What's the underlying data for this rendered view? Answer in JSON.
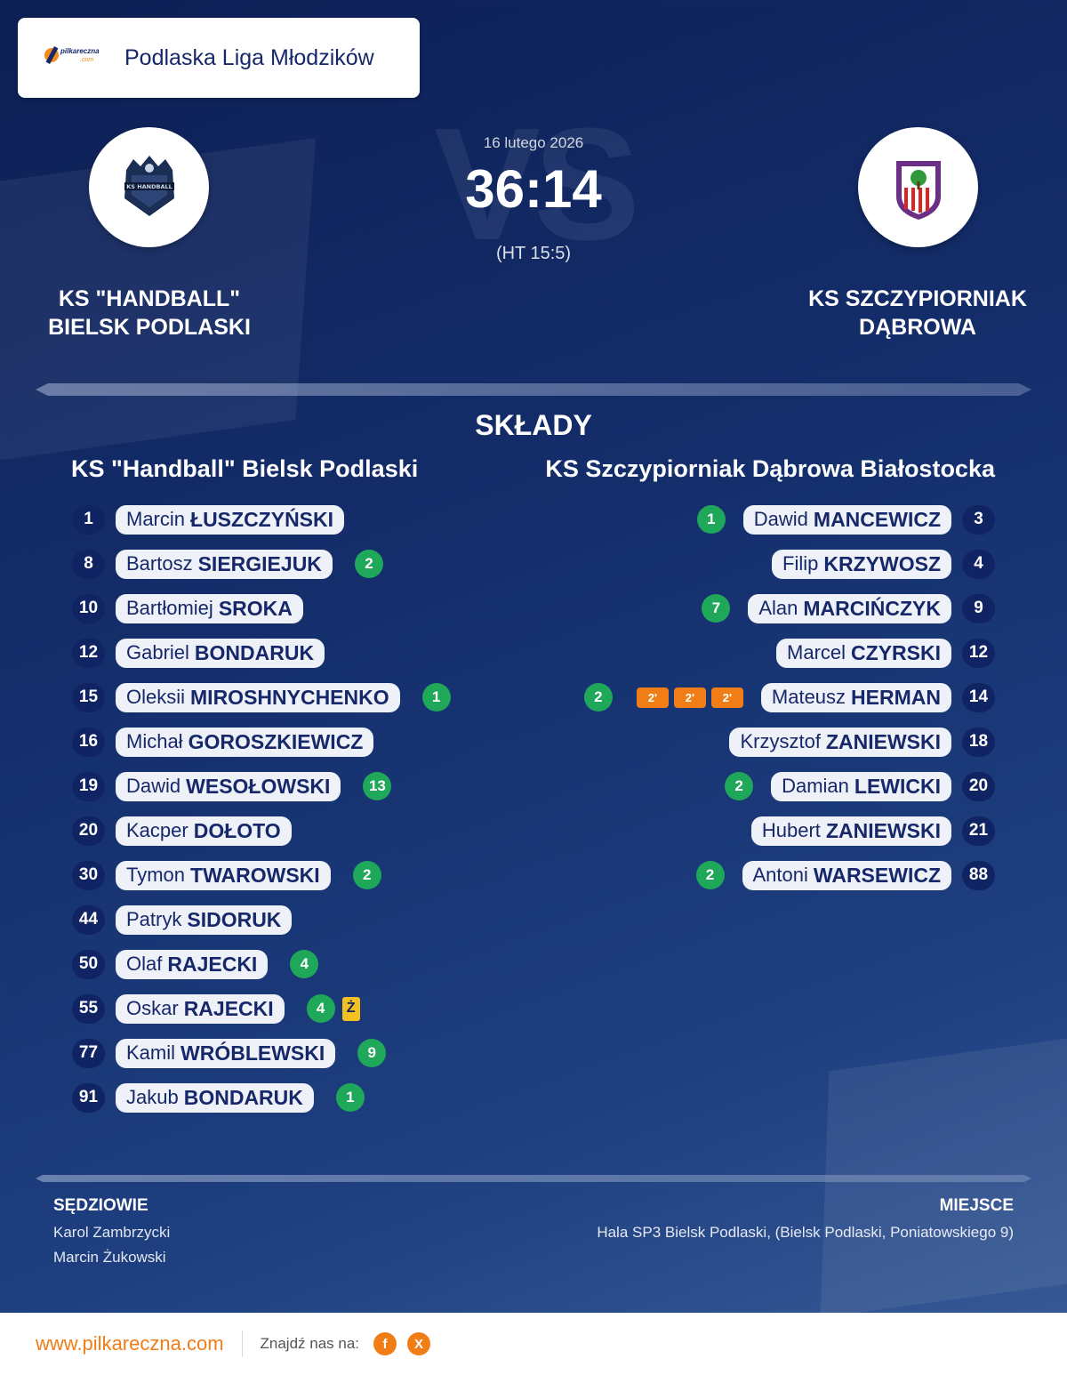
{
  "league": {
    "logo_text": "pilkareczna",
    "logo_subtext": ".com",
    "name": "Podlaska Liga Młodzików"
  },
  "match": {
    "date": "16 lutego 2026",
    "score": "36:14",
    "halftime": "(HT 15:5)",
    "vs_watermark": "VS"
  },
  "home": {
    "name_line1": "KS \"HANDBALL\"",
    "name_line2": "BIELSK PODLASKI",
    "squad_title": "KS \"Handball\" Bielsk Podlaski"
  },
  "away": {
    "name_line1": "KS SZCZYPIORNIAK",
    "name_line2": "DĄBROWA",
    "squad_title": "KS Szczypiorniak Dąbrowa Białostocka"
  },
  "section_title": "SKŁADY",
  "home_roster": [
    {
      "number": "1",
      "first": "Marcin",
      "last": "ŁUSZCZYŃSKI"
    },
    {
      "number": "8",
      "first": "Bartosz",
      "last": "SIERGIEJUK",
      "goals": "2"
    },
    {
      "number": "10",
      "first": "Bartłomiej",
      "last": "SROKA"
    },
    {
      "number": "12",
      "first": "Gabriel",
      "last": "BONDARUK"
    },
    {
      "number": "15",
      "first": "Oleksii",
      "last": "MIROSHNYCHENKO",
      "goals": "1"
    },
    {
      "number": "16",
      "first": "Michał",
      "last": "GOROSZKIEWICZ"
    },
    {
      "number": "19",
      "first": "Dawid",
      "last": "WESOŁOWSKI",
      "goals": "13"
    },
    {
      "number": "20",
      "first": "Kacper",
      "last": "DOŁOTO"
    },
    {
      "number": "30",
      "first": "Tymon",
      "last": "TWAROWSKI",
      "goals": "2"
    },
    {
      "number": "44",
      "first": "Patryk",
      "last": "SIDORUK"
    },
    {
      "number": "50",
      "first": "Olaf",
      "last": "RAJECKI",
      "goals": "4"
    },
    {
      "number": "55",
      "first": "Oskar",
      "last": "RAJECKI",
      "goals": "4",
      "card": "Ż"
    },
    {
      "number": "77",
      "first": "Kamil",
      "last": "WRÓBLEWSKI",
      "goals": "9"
    },
    {
      "number": "91",
      "first": "Jakub",
      "last": "BONDARUK",
      "goals": "1"
    }
  ],
  "away_roster": [
    {
      "number": "3",
      "first": "Dawid",
      "last": "MANCEWICZ",
      "goals": "1"
    },
    {
      "number": "4",
      "first": "Filip",
      "last": "KRZYWOSZ"
    },
    {
      "number": "9",
      "first": "Alan",
      "last": "MARCIŃCZYK",
      "goals": "7"
    },
    {
      "number": "12",
      "first": "Marcel",
      "last": "CZYRSKI"
    },
    {
      "number": "14",
      "first": "Mateusz",
      "last": "HERMAN",
      "goals": "2",
      "suspensions": [
        "2'",
        "2'",
        "2'"
      ]
    },
    {
      "number": "18",
      "first": "Krzysztof",
      "last": "ZANIEWSKI"
    },
    {
      "number": "20",
      "first": "Damian",
      "last": "LEWICKI",
      "goals": "2"
    },
    {
      "number": "21",
      "first": "Hubert",
      "last": "ZANIEWSKI"
    },
    {
      "number": "88",
      "first": "Antoni",
      "last": "WARSEWICZ",
      "goals": "2"
    }
  ],
  "officials": {
    "title": "SĘDZIOWIE",
    "referees": [
      "Karol Zambrzycki",
      "Marcin Żukowski"
    ]
  },
  "venue": {
    "title": "MIEJSCE",
    "text": "Hala SP3 Bielsk Podlaski, (Bielsk Podlaski, Poniatowskiego 9)"
  },
  "footer": {
    "site": "www.pilkareczna.com",
    "find_us": "Znajdź nas na:",
    "socials": [
      {
        "icon": "facebook-icon",
        "glyph": "f"
      },
      {
        "icon": "x-icon",
        "glyph": "X"
      }
    ]
  },
  "colors": {
    "goals": "#1fa85a",
    "suspension": "#f07d16",
    "yellow_card": "#f4bf21",
    "number_badge": "#102463",
    "accent": "#f07d16"
  }
}
